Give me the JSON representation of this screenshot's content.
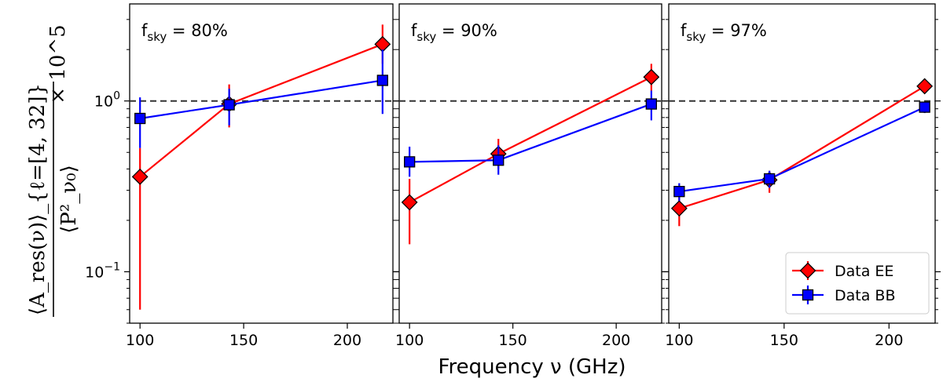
{
  "chart_data": {
    "type": "line",
    "xlabel": "Frequency ν (GHz)",
    "ylabel": {
      "numerator": "⟨A_res(ν)⟩_{ℓ=[4, 32]}",
      "denominator": "⟨P²_ν₀⟩",
      "multiplier": "× 10^5"
    },
    "yscale": "log",
    "ylim": [
      0.05,
      3.7
    ],
    "xlim": [
      95,
      222
    ],
    "x_ticks": [
      100,
      150,
      200
    ],
    "y_ticks": [
      {
        "value": 1.0,
        "base": "10",
        "exp": "0"
      },
      {
        "value": 0.1,
        "base": "10",
        "exp": "−1"
      }
    ],
    "reference_line": 1.0,
    "legend": {
      "placement": "lower-right",
      "entries": [
        "Data EE",
        "Data BB"
      ]
    },
    "panels": [
      {
        "title_main": "f",
        "title_sub": "sky",
        "title_rest": " = 80%",
        "series": [
          {
            "name": "Data EE",
            "color": "#ff0000",
            "marker": "diamond",
            "x": [
              100,
              143,
              217
            ],
            "y": [
              0.36,
              0.96,
              2.15
            ],
            "yerr_low": [
              0.06,
              0.7,
              1.65
            ],
            "yerr_high": [
              0.53,
              1.25,
              2.8
            ]
          },
          {
            "name": "Data BB",
            "color": "#0000ff",
            "marker": "square",
            "x": [
              100,
              143,
              217
            ],
            "y": [
              0.79,
              0.95,
              1.32
            ],
            "yerr_low": [
              0.53,
              0.72,
              0.84
            ],
            "yerr_high": [
              1.05,
              1.18,
              2.0
            ]
          }
        ]
      },
      {
        "title_main": "f",
        "title_sub": "sky",
        "title_rest": " = 90%",
        "series": [
          {
            "name": "Data EE",
            "color": "#ff0000",
            "marker": "diamond",
            "x": [
              100,
              143,
              217
            ],
            "y": [
              0.255,
              0.49,
              1.38
            ],
            "yerr_low": [
              0.145,
              0.4,
              1.15
            ],
            "yerr_high": [
              0.35,
              0.6,
              1.65
            ]
          },
          {
            "name": "Data BB",
            "color": "#0000ff",
            "marker": "square",
            "x": [
              100,
              143,
              217
            ],
            "y": [
              0.44,
              0.45,
              0.96
            ],
            "yerr_low": [
              0.36,
              0.37,
              0.77
            ],
            "yerr_high": [
              0.54,
              0.55,
              1.15
            ]
          }
        ]
      },
      {
        "title_main": "f",
        "title_sub": "sky",
        "title_rest": " = 97%",
        "series": [
          {
            "name": "Data EE",
            "color": "#ff0000",
            "marker": "diamond",
            "x": [
              100,
              143,
              217
            ],
            "y": [
              0.235,
              0.345,
              1.22
            ],
            "yerr_low": [
              0.185,
              0.29,
              1.14
            ],
            "yerr_high": [
              0.29,
              0.39,
              1.3
            ]
          },
          {
            "name": "Data BB",
            "color": "#0000ff",
            "marker": "square",
            "x": [
              100,
              143,
              217
            ],
            "y": [
              0.295,
              0.35,
              0.92
            ],
            "yerr_low": [
              0.26,
              0.31,
              0.85
            ],
            "yerr_high": [
              0.33,
              0.39,
              0.99
            ]
          }
        ]
      }
    ]
  }
}
